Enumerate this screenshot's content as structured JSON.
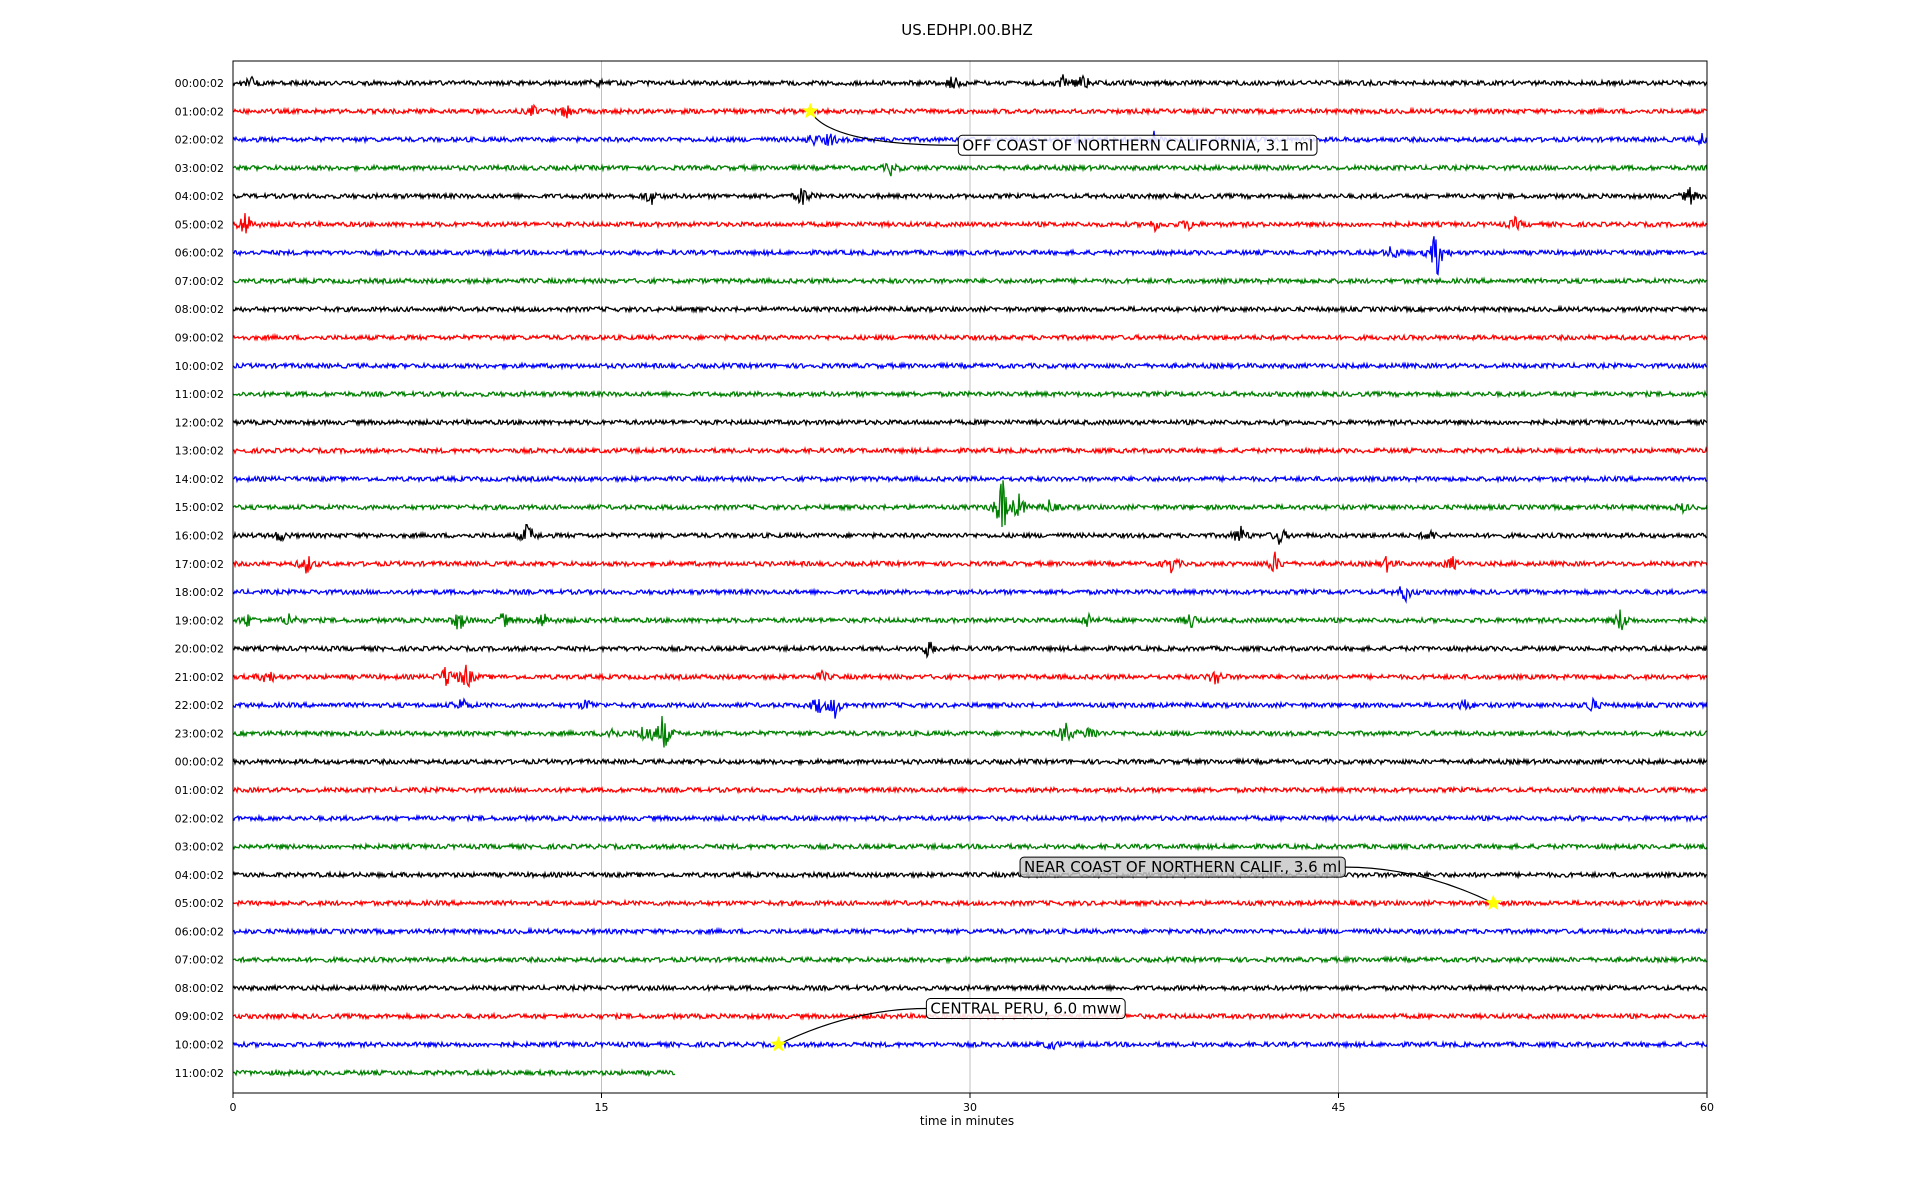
{
  "chart_data": {
    "type": "line",
    "title": "US.EDHPI.00.BHZ",
    "xlabel": "time in minutes",
    "ylabel": "",
    "xlim": [
      0,
      60
    ],
    "x_ticks": [
      "0",
      "15",
      "30",
      "45",
      "60"
    ],
    "grid": "vertical lines at 15, 30, 45",
    "row_colors": [
      "#000000",
      "#ff0000",
      "#0000ff",
      "#008000"
    ],
    "rows": [
      {
        "label": "00:00:02",
        "end_min": 60,
        "bursts": [
          [
            0.7,
            7
          ],
          [
            14.8,
            3
          ],
          [
            29.3,
            8
          ],
          [
            33.8,
            7
          ],
          [
            34.6,
            9
          ]
        ]
      },
      {
        "label": "01:00:02",
        "end_min": 60,
        "bursts": [
          [
            12.2,
            5
          ],
          [
            13.6,
            8
          ]
        ]
      },
      {
        "label": "02:00:02",
        "end_min": 60,
        "bursts": [
          [
            23.6,
            6
          ],
          [
            24.3,
            7
          ],
          [
            34.5,
            6
          ],
          [
            37.5,
            7
          ],
          [
            59.8,
            6
          ]
        ]
      },
      {
        "label": "03:00:02",
        "end_min": 60,
        "bursts": [
          [
            26.8,
            7
          ]
        ]
      },
      {
        "label": "04:00:02",
        "end_min": 60,
        "bursts": [
          [
            17.0,
            9
          ],
          [
            23.2,
            11
          ],
          [
            59.3,
            9
          ]
        ]
      },
      {
        "label": "05:00:02",
        "end_min": 60,
        "bursts": [
          [
            0.5,
            16
          ],
          [
            37.5,
            6
          ],
          [
            38.9,
            6
          ],
          [
            52.2,
            6
          ]
        ]
      },
      {
        "label": "06:00:02",
        "end_min": 60,
        "bursts": [
          [
            47.2,
            8
          ],
          [
            49.0,
            28
          ]
        ]
      },
      {
        "label": "07:00:02",
        "end_min": 60,
        "bursts": []
      },
      {
        "label": "08:00:02",
        "end_min": 60,
        "bursts": []
      },
      {
        "label": "09:00:02",
        "end_min": 60,
        "bursts": []
      },
      {
        "label": "10:00:02",
        "end_min": 60,
        "bursts": []
      },
      {
        "label": "11:00:02",
        "end_min": 60,
        "bursts": []
      },
      {
        "label": "12:00:02",
        "end_min": 60,
        "bursts": []
      },
      {
        "label": "13:00:02",
        "end_min": 60,
        "bursts": []
      },
      {
        "label": "14:00:02",
        "end_min": 60,
        "bursts": []
      },
      {
        "label": "15:00:02",
        "end_min": 60,
        "bursts": [
          [
            31.3,
            35
          ],
          [
            32.0,
            13
          ],
          [
            33.2,
            7
          ],
          [
            59.0,
            4
          ]
        ]
      },
      {
        "label": "16:00:02",
        "end_min": 60,
        "bursts": [
          [
            1.9,
            6
          ],
          [
            12.0,
            14
          ],
          [
            41.0,
            11
          ],
          [
            42.6,
            9
          ],
          [
            48.7,
            6
          ]
        ]
      },
      {
        "label": "17:00:02",
        "end_min": 60,
        "bursts": [
          [
            3.0,
            11
          ],
          [
            38.2,
            9
          ],
          [
            42.4,
            11
          ],
          [
            47.0,
            8
          ],
          [
            49.6,
            8
          ]
        ]
      },
      {
        "label": "18:00:02",
        "end_min": 60,
        "bursts": [
          [
            47.7,
            11
          ]
        ]
      },
      {
        "label": "19:00:02",
        "end_min": 60,
        "bursts": [
          [
            0.6,
            6
          ],
          [
            2.3,
            8
          ],
          [
            9.2,
            12
          ],
          [
            11.0,
            8
          ],
          [
            12.6,
            9
          ],
          [
            34.8,
            8
          ],
          [
            39.0,
            8
          ],
          [
            56.5,
            13
          ]
        ]
      },
      {
        "label": "20:00:02",
        "end_min": 60,
        "bursts": [
          [
            28.3,
            9
          ]
        ]
      },
      {
        "label": "21:00:02",
        "end_min": 60,
        "bursts": [
          [
            1.4,
            9
          ],
          [
            8.7,
            13
          ],
          [
            9.5,
            15
          ],
          [
            24.0,
            5
          ],
          [
            40.0,
            10
          ]
        ]
      },
      {
        "label": "22:00:02",
        "end_min": 60,
        "bursts": [
          [
            9.3,
            8
          ],
          [
            14.4,
            6
          ],
          [
            23.8,
            10
          ],
          [
            24.5,
            12
          ],
          [
            50.1,
            6
          ],
          [
            55.3,
            8
          ]
        ]
      },
      {
        "label": "23:00:02",
        "end_min": 60,
        "bursts": [
          [
            15.4,
            8
          ],
          [
            16.8,
            14
          ],
          [
            17.5,
            22
          ],
          [
            33.9,
            13
          ],
          [
            34.9,
            9
          ]
        ]
      },
      {
        "label": "00:00:02",
        "end_min": 60,
        "bursts": []
      },
      {
        "label": "01:00:02",
        "end_min": 60,
        "bursts": []
      },
      {
        "label": "02:00:02",
        "end_min": 60,
        "bursts": []
      },
      {
        "label": "03:00:02",
        "end_min": 60,
        "bursts": []
      },
      {
        "label": "04:00:02",
        "end_min": 60,
        "bursts": []
      },
      {
        "label": "05:00:02",
        "end_min": 60,
        "bursts": []
      },
      {
        "label": "06:00:02",
        "end_min": 60,
        "bursts": []
      },
      {
        "label": "07:00:02",
        "end_min": 60,
        "bursts": []
      },
      {
        "label": "08:00:02",
        "end_min": 60,
        "bursts": []
      },
      {
        "label": "09:00:02",
        "end_min": 60,
        "bursts": []
      },
      {
        "label": "10:00:02",
        "end_min": 60,
        "bursts": [
          [
            33.3,
            5
          ]
        ]
      },
      {
        "label": "11:00:02",
        "end_min": 18.0,
        "bursts": []
      }
    ],
    "events": [
      {
        "label": "OFF COAST OF NORTHERN CALIFORNIA, 3.1 ml",
        "row": 1,
        "minute": 23.5,
        "box_color": "#ffffff"
      },
      {
        "label": "NEAR COAST OF NORTHERN CALIF., 3.6 ml",
        "row": 29,
        "minute": 51.3,
        "box_color": "#c8c8c8"
      },
      {
        "label": "CENTRAL PERU, 6.0 mww",
        "row": 34,
        "minute": 22.2,
        "box_color": "#ffffff"
      }
    ],
    "marker_color": "#ffff00"
  }
}
